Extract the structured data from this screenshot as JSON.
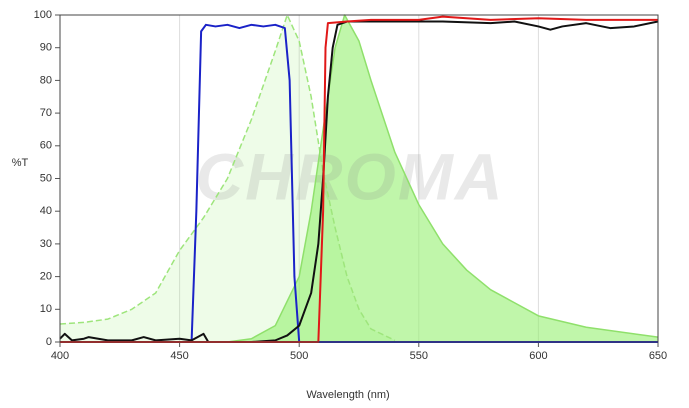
{
  "chart_data": {
    "type": "line",
    "ylabel": "%T",
    "xlabel": "Wavelength (nm)",
    "watermark": "CHROMA",
    "xlim": [
      400,
      650
    ],
    "xticks": [
      400,
      450,
      500,
      550,
      600,
      650
    ],
    "ylim": [
      0,
      100
    ],
    "yticks": [
      0,
      10,
      20,
      30,
      40,
      50,
      60,
      70,
      80,
      90,
      100
    ],
    "xgrid": true,
    "ygrid": false,
    "series": [
      {
        "color": "#9ee57c",
        "fill": "rgba(150,235,110,0.16)",
        "dashed": true,
        "x": [
          400,
          410,
          420,
          430,
          440,
          450,
          460,
          470,
          480,
          490,
          495,
          500,
          505,
          510,
          515,
          520,
          525,
          530,
          540
        ],
        "values": [
          5.5,
          6,
          7,
          10,
          15,
          28,
          38,
          50,
          68,
          89,
          100,
          92,
          75,
          52,
          35,
          20,
          10,
          4,
          0.5
        ]
      },
      {
        "color": "#8fe06b",
        "fill": "rgba(140,238,100,0.55)",
        "dashed": false,
        "x": [
          470,
          480,
          490,
          500,
          505,
          510,
          515,
          519,
          525,
          530,
          540,
          550,
          560,
          570,
          580,
          590,
          600,
          620,
          650
        ],
        "values": [
          0,
          1,
          5,
          20,
          40,
          65,
          90,
          100,
          92,
          80,
          58,
          42,
          30,
          22,
          16,
          12,
          8,
          4.5,
          1.5
        ]
      },
      {
        "color": "#1a22c8",
        "dashed": false,
        "x": [
          400,
          455,
          457,
          459,
          461,
          465,
          470,
          475,
          480,
          485,
          490,
          494,
          496,
          498,
          500,
          650
        ],
        "values": [
          0,
          0,
          40,
          95,
          97,
          96.5,
          97,
          96,
          97,
          96.5,
          97,
          96,
          80,
          20,
          0,
          0
        ]
      },
      {
        "color": "#111111",
        "dashed": false,
        "x": [
          400,
          402,
          405,
          410,
          412,
          420,
          430,
          435,
          440,
          450,
          455,
          460,
          462,
          470,
          480,
          490,
          495,
          500,
          505,
          508,
          510,
          512,
          514,
          516,
          520,
          540,
          560,
          580,
          590,
          600,
          605,
          610,
          620,
          630,
          640,
          650
        ],
        "values": [
          1,
          2.5,
          0.5,
          1,
          1.5,
          0.5,
          0.5,
          1.5,
          0.5,
          1,
          0.5,
          2.5,
          0,
          0,
          0,
          0.5,
          2,
          5,
          15,
          30,
          50,
          75,
          90,
          97,
          98,
          98,
          98,
          97.5,
          98,
          96.5,
          95.5,
          96.5,
          97.5,
          96,
          96.5,
          98
        ]
      },
      {
        "color": "#e01818",
        "dashed": false,
        "x": [
          400,
          508,
          510,
          511,
          512,
          520,
          530,
          550,
          560,
          580,
          600,
          620,
          650
        ],
        "values": [
          0,
          0,
          40,
          90,
          97.5,
          98,
          98.5,
          98.5,
          99.5,
          98.5,
          99,
          98.5,
          98.5
        ]
      }
    ]
  }
}
